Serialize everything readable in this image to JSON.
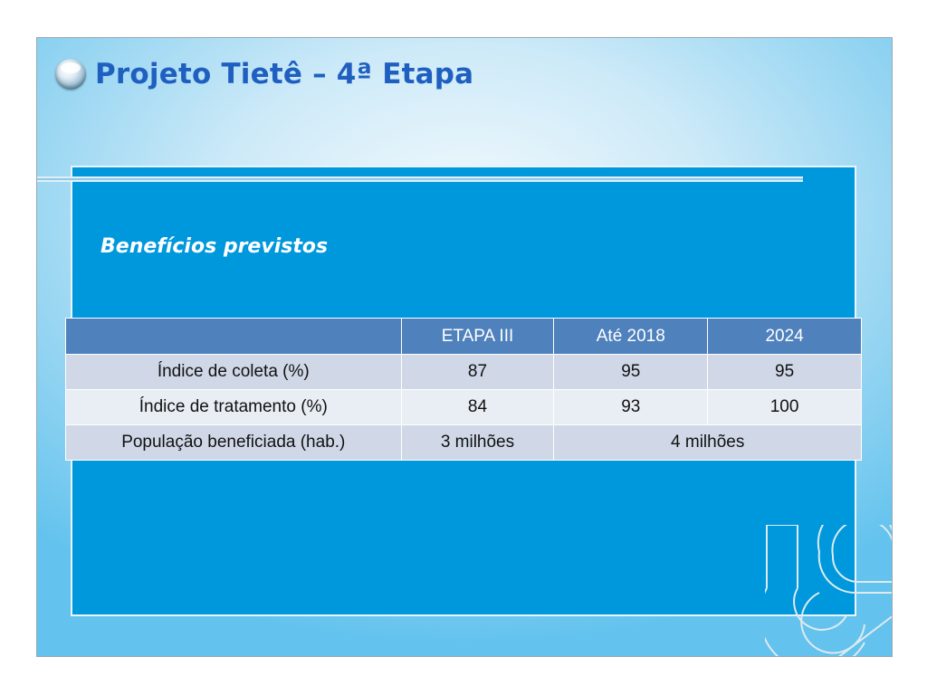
{
  "slide": {
    "title": "Projeto Tietê – 4ª Etapa",
    "subtitle": "Benefícios previstos"
  },
  "table": {
    "headers": [
      "",
      "ETAPA III",
      "Até  2018",
      "2024"
    ],
    "rows": [
      {
        "label": "Índice de coleta (%)",
        "etapa3": "87",
        "ate2018": "95",
        "y2024": "95"
      },
      {
        "label": "Índice de tratamento (%)",
        "etapa3": "84",
        "ate2018": "93",
        "y2024": "100"
      },
      {
        "label": "População beneficiada (hab.)",
        "etapa3": "3 milhões",
        "merged": "4 milhões"
      }
    ]
  },
  "colors": {
    "title": "#1f5fbf",
    "panel": "#0098dc",
    "header_row": "#4f81bd",
    "row_odd": "#d0d8e8",
    "row_even": "#e9edf4"
  },
  "icons": {
    "title_bullet": "orb-bullet-icon",
    "corner_logo": "company-logo"
  }
}
